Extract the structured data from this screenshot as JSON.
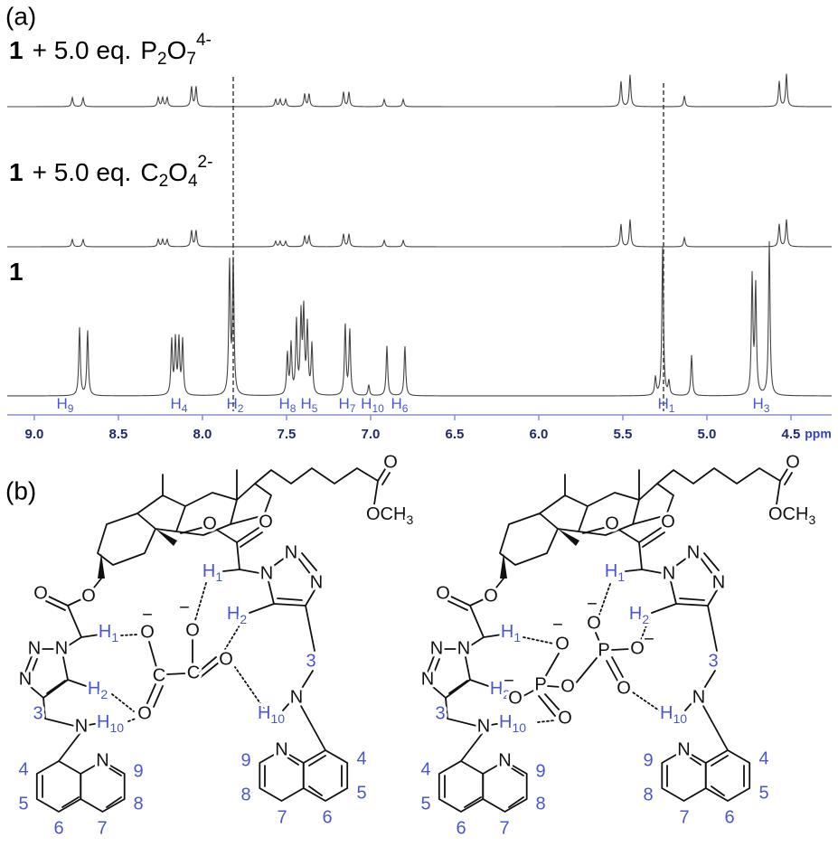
{
  "panel_a": {
    "label": "(a)",
    "traces": [
      {
        "compound": "1",
        "text": "+ 5.0 eq.",
        "formula": [
          [
            "P",
            "2"
          ],
          [
            "O",
            "7"
          ]
        ],
        "charge": "4-",
        "peaks": [
          [
            8.774,
            10
          ],
          [
            8.71,
            10
          ],
          [
            8.263,
            10
          ],
          [
            8.237,
            10
          ],
          [
            8.21,
            10
          ],
          [
            8.065,
            22
          ],
          [
            8.038,
            22
          ],
          [
            7.565,
            8
          ],
          [
            7.538,
            8
          ],
          [
            7.505,
            8
          ],
          [
            7.392,
            14
          ],
          [
            7.366,
            14
          ],
          [
            7.161,
            16
          ],
          [
            7.129,
            16
          ],
          [
            6.919,
            8
          ],
          [
            6.806,
            8
          ],
          [
            5.511,
            28
          ],
          [
            5.457,
            35
          ],
          [
            5.134,
            12
          ],
          [
            4.57,
            28
          ],
          [
            4.527,
            36
          ]
        ]
      },
      {
        "compound": "1",
        "text": "+ 5.0 eq.",
        "formula": [
          [
            "C",
            "2"
          ],
          [
            "O",
            "4"
          ]
        ],
        "charge": "2-",
        "peaks": [
          [
            8.774,
            8
          ],
          [
            8.71,
            8
          ],
          [
            8.263,
            8
          ],
          [
            8.237,
            8
          ],
          [
            8.21,
            8
          ],
          [
            8.065,
            18
          ],
          [
            8.038,
            18
          ],
          [
            7.565,
            6
          ],
          [
            7.538,
            6
          ],
          [
            7.505,
            6
          ],
          [
            7.392,
            12
          ],
          [
            7.366,
            12
          ],
          [
            7.161,
            14
          ],
          [
            7.129,
            14
          ],
          [
            6.919,
            7
          ],
          [
            6.806,
            7
          ],
          [
            5.511,
            25
          ],
          [
            5.457,
            30
          ],
          [
            5.134,
            10
          ],
          [
            4.57,
            25
          ],
          [
            4.527,
            30
          ]
        ]
      },
      {
        "compound": "1",
        "peaks": [
          [
            8.731,
            75
          ],
          [
            8.683,
            72
          ],
          [
            8.183,
            60
          ],
          [
            8.161,
            60
          ],
          [
            8.14,
            60
          ],
          [
            8.118,
            60
          ],
          [
            7.839,
            145
          ],
          [
            7.817,
            145
          ],
          [
            7.495,
            45
          ],
          [
            7.473,
            55
          ],
          [
            7.441,
            80
          ],
          [
            7.414,
            85
          ],
          [
            7.398,
            90
          ],
          [
            7.376,
            75
          ],
          [
            7.349,
            55
          ],
          [
            7.151,
            78
          ],
          [
            7.124,
            72
          ],
          [
            7.011,
            12
          ],
          [
            6.903,
            55
          ],
          [
            6.796,
            55
          ],
          [
            5.306,
            20
          ],
          [
            5.263,
            165
          ],
          [
            5.226,
            15
          ],
          [
            5.091,
            45
          ],
          [
            4.731,
            130
          ],
          [
            4.71,
            120
          ],
          [
            4.629,
            170
          ]
        ]
      }
    ],
    "axis": {
      "unit": "ppm",
      "xlim": [
        9.161,
        4.258
      ],
      "ticks": [
        {
          "value": 9,
          "label": "9.0"
        },
        8.5,
        {
          "value": 8,
          "label": "8.0"
        },
        7.5,
        {
          "value": 7,
          "label": "7.0"
        },
        6.5,
        {
          "value": 6,
          "label": "6.0"
        },
        5.5,
        {
          "value": 5,
          "label": "5.0"
        },
        4.5
      ]
    },
    "peak_labels": [
      [
        "H",
        "9"
      ],
      [
        "H",
        "4"
      ],
      [
        "H",
        "2"
      ],
      [
        "H",
        "8"
      ],
      [
        "H",
        "5"
      ],
      [
        "H",
        "7"
      ],
      [
        "H",
        "10"
      ],
      [
        "H",
        "6"
      ],
      [
        "H",
        "1"
      ],
      [
        "H",
        "3"
      ]
    ]
  },
  "panel_b": {
    "label": "(b)",
    "structures": [
      {
        "labels": [
          "O",
          [
            "OCH",
            "3"
          ],
          "O",
          "O",
          "O",
          "O",
          [
            "H",
            "1"
          ],
          [
            "H",
            "1"
          ],
          "N",
          "N",
          "N",
          [
            "H",
            "2"
          ],
          "3",
          "N",
          [
            "H",
            "10"
          ],
          "4",
          "5",
          "6",
          "7",
          "8",
          "9",
          "N",
          "N",
          "N",
          "N",
          [
            "H",
            "2"
          ],
          "3",
          "N",
          [
            "H",
            "10"
          ],
          "4",
          "5",
          "6",
          "7",
          "8",
          "9",
          "N",
          "O",
          "−",
          "O",
          "−",
          "C",
          "C",
          "O",
          "O"
        ]
      },
      {
        "labels": [
          "O",
          [
            "OCH",
            "3"
          ],
          "O",
          "O",
          "O",
          "O",
          [
            "H",
            "1"
          ],
          [
            "H",
            "1"
          ],
          "N",
          "N",
          "N",
          [
            "H",
            "2"
          ],
          "3",
          "N",
          [
            "H",
            "10"
          ],
          "4",
          "5",
          "6",
          "7",
          "8",
          "9",
          "N",
          "N",
          "N",
          "N",
          [
            "H",
            "2"
          ],
          "3",
          "N",
          [
            "H",
            "10"
          ],
          "4",
          "5",
          "6",
          "7",
          "8",
          "9",
          "N",
          "O",
          "−",
          "P",
          "O",
          "−",
          "O",
          "O",
          "P",
          "O",
          "O",
          "−",
          "O",
          "−"
        ]
      }
    ]
  }
}
